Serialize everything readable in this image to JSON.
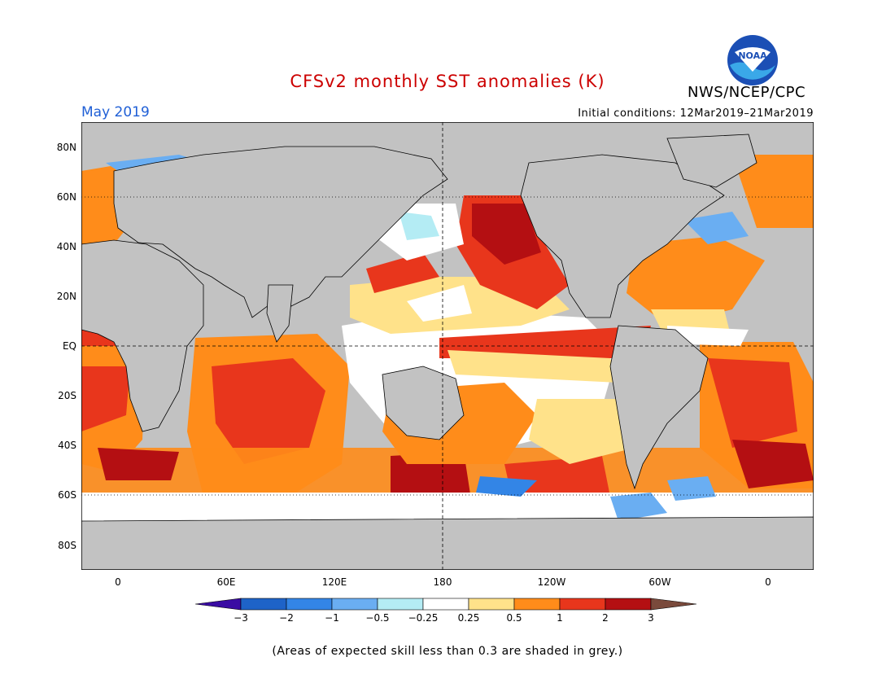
{
  "title": "CFSv2 monthly SST anomalies (K)",
  "target_month": "May 2019",
  "initial_conditions": "Initial conditions: 12Mar2019–21Mar2019",
  "agency": "NWS/NCEP/CPC",
  "logo_text": "NOAA",
  "latitude_labels": [
    "80N",
    "60N",
    "40N",
    "20N",
    "EQ",
    "20S",
    "40S",
    "60S",
    "80S"
  ],
  "longitude_labels": [
    "0",
    "60E",
    "120E",
    "180",
    "120W",
    "60W",
    "0"
  ],
  "colorbar": {
    "tick_labels": [
      "−3",
      "−2",
      "−1",
      "−0.5",
      "−0.25",
      "0.25",
      "0.5",
      "1",
      "2",
      "3"
    ],
    "colors": [
      "#3a0ca3",
      "#1e63c8",
      "#3385e6",
      "#6aaef2",
      "#b4ecf4",
      "#ffffff",
      "#ffe28a",
      "#ff8c1a",
      "#e8361c",
      "#b40f12",
      "#7a4a3c"
    ]
  },
  "colors": {
    "land": "#c2c2c2",
    "skill_mask": "#c2c2c2",
    "title": "#cc0000",
    "month": "#1f5fd6"
  },
  "footnote": "(Areas of expected skill less than 0.3 are shaded in grey.)"
}
